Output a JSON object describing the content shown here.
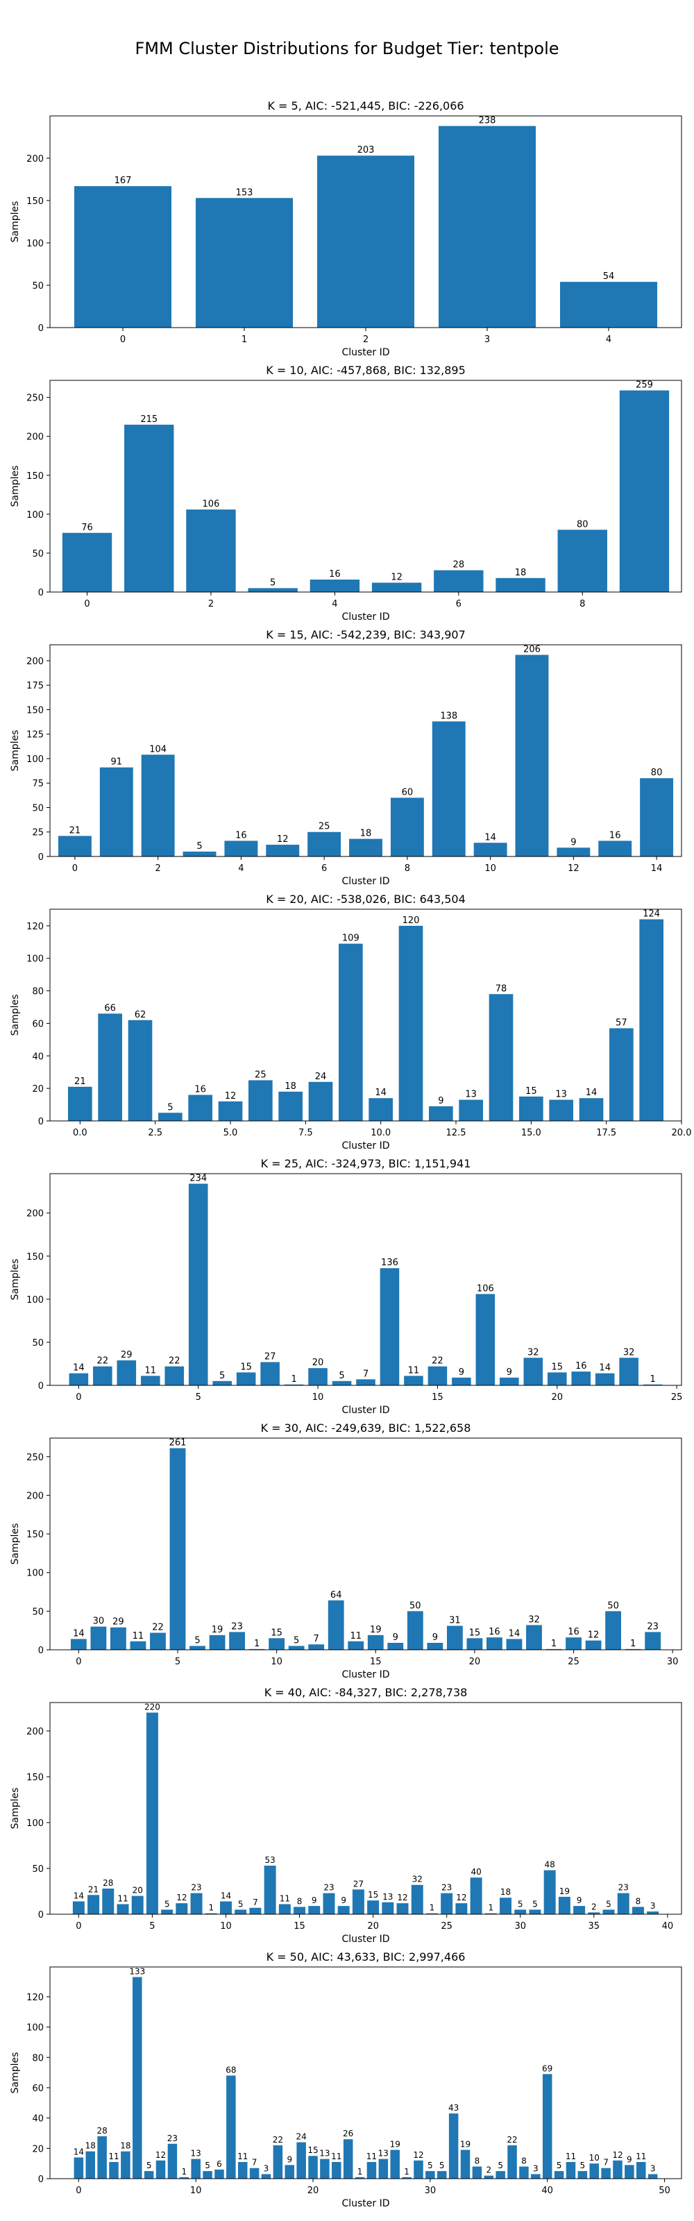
{
  "title": "FMM Cluster Distributions for Budget Tier: tentpole",
  "bar_color": "#1f77b4",
  "chart_data": [
    {
      "type": "bar",
      "title": "K = 5, AIC: -521,445, BIC: -226,066",
      "xlabel": "Cluster ID",
      "ylabel": "Samples",
      "x": [
        0,
        1,
        2,
        3,
        4
      ],
      "values": [
        167,
        153,
        203,
        238,
        54
      ],
      "xlim": [
        -0.6,
        4.6
      ],
      "ylim": [
        0,
        249.9
      ],
      "xticks": [
        0,
        1,
        2,
        3,
        4
      ],
      "xtick_labels": [
        "0",
        "1",
        "2",
        "3",
        "4"
      ],
      "yticks": [
        0,
        50,
        100,
        150,
        200
      ],
      "ytick_labels": [
        "0",
        "50",
        "100",
        "150",
        "200"
      ]
    },
    {
      "type": "bar",
      "title": "K = 10, AIC: -457,868, BIC: 132,895",
      "xlabel": "Cluster ID",
      "ylabel": "Samples",
      "x": [
        0,
        1,
        2,
        3,
        4,
        5,
        6,
        7,
        8,
        9
      ],
      "values": [
        76,
        215,
        106,
        5,
        16,
        12,
        28,
        18,
        80,
        259
      ],
      "xlim": [
        -0.6,
        9.6
      ],
      "ylim": [
        0,
        271.95
      ],
      "xticks": [
        0,
        2,
        4,
        6,
        8
      ],
      "xtick_labels": [
        "0",
        "2",
        "4",
        "6",
        "8"
      ],
      "yticks": [
        0,
        50,
        100,
        150,
        200,
        250
      ],
      "ytick_labels": [
        "0",
        "50",
        "100",
        "150",
        "200",
        "250"
      ]
    },
    {
      "type": "bar",
      "title": "K = 15, AIC: -542,239, BIC: 343,907",
      "xlabel": "Cluster ID",
      "ylabel": "Samples",
      "x": [
        0,
        1,
        2,
        3,
        4,
        5,
        6,
        7,
        8,
        9,
        10,
        11,
        12,
        13,
        14
      ],
      "values": [
        21,
        91,
        104,
        5,
        16,
        12,
        25,
        18,
        60,
        138,
        14,
        206,
        9,
        16,
        80
      ],
      "xlim": [
        -0.6,
        14.6
      ],
      "ylim": [
        0,
        216.3
      ],
      "xticks": [
        0,
        2,
        4,
        6,
        8,
        10,
        12,
        14
      ],
      "xtick_labels": [
        "0",
        "2",
        "4",
        "6",
        "8",
        "10",
        "12",
        "14"
      ],
      "yticks": [
        0,
        25,
        50,
        75,
        100,
        125,
        150,
        175,
        200
      ],
      "ytick_labels": [
        "0",
        "25",
        "50",
        "75",
        "100",
        "125",
        "150",
        "175",
        "200"
      ]
    },
    {
      "type": "bar",
      "title": "K = 20, AIC: -538,026, BIC: 643,504",
      "xlabel": "Cluster ID",
      "ylabel": "Samples",
      "x": [
        0,
        1,
        2,
        3,
        4,
        5,
        6,
        7,
        8,
        9,
        10,
        11,
        12,
        13,
        14,
        15,
        16,
        17,
        18,
        19
      ],
      "values": [
        21,
        66,
        62,
        5,
        16,
        12,
        25,
        18,
        24,
        109,
        14,
        120,
        9,
        13,
        78,
        15,
        13,
        14,
        57,
        124
      ],
      "xlim": [
        -1.0,
        20.0
      ],
      "ylim": [
        0,
        130.2
      ],
      "xticks": [
        0,
        2.5,
        5,
        7.5,
        10,
        12.5,
        15,
        17.5,
        20
      ],
      "xtick_labels": [
        "0.0",
        "2.5",
        "5.0",
        "7.5",
        "10.0",
        "12.5",
        "15.0",
        "17.5",
        "20.0"
      ],
      "yticks": [
        0,
        20,
        40,
        60,
        80,
        100,
        120
      ],
      "ytick_labels": [
        "0",
        "20",
        "40",
        "60",
        "80",
        "100",
        "120"
      ]
    },
    {
      "type": "bar",
      "title": "K = 25, AIC: -324,973, BIC: 1,151,941",
      "xlabel": "Cluster ID",
      "ylabel": "Samples",
      "x": [
        0,
        1,
        2,
        3,
        4,
        5,
        6,
        7,
        8,
        9,
        10,
        11,
        12,
        13,
        14,
        15,
        16,
        17,
        18,
        19,
        20,
        21,
        22,
        23,
        24
      ],
      "values": [
        14,
        22,
        29,
        11,
        22,
        234,
        5,
        15,
        27,
        1,
        20,
        5,
        7,
        136,
        11,
        22,
        9,
        106,
        9,
        32,
        15,
        16,
        14,
        32,
        1
      ],
      "xlim": [
        -1.2,
        25.2
      ],
      "ylim": [
        0,
        245.7
      ],
      "xticks": [
        0,
        5,
        10,
        15,
        20,
        25
      ],
      "xtick_labels": [
        "0",
        "5",
        "10",
        "15",
        "20",
        "25"
      ],
      "yticks": [
        0,
        50,
        100,
        150,
        200
      ],
      "ytick_labels": [
        "0",
        "50",
        "100",
        "150",
        "200"
      ]
    },
    {
      "type": "bar",
      "title": "K = 30, AIC: -249,639, BIC: 1,522,658",
      "xlabel": "Cluster ID",
      "ylabel": "Samples",
      "x": [
        0,
        1,
        2,
        3,
        4,
        5,
        6,
        7,
        8,
        9,
        10,
        11,
        12,
        13,
        14,
        15,
        16,
        17,
        18,
        19,
        20,
        21,
        22,
        23,
        24,
        25,
        26,
        27,
        28,
        29
      ],
      "values": [
        14,
        30,
        29,
        11,
        22,
        261,
        5,
        19,
        23,
        1,
        15,
        5,
        7,
        64,
        11,
        19,
        9,
        50,
        9,
        31,
        15,
        16,
        14,
        32,
        1,
        16,
        12,
        50,
        1,
        23
      ],
      "xlim": [
        -1.45,
        30.45
      ],
      "ylim": [
        0,
        274.05
      ],
      "xticks": [
        0,
        5,
        10,
        15,
        20,
        25,
        30
      ],
      "xtick_labels": [
        "0",
        "5",
        "10",
        "15",
        "20",
        "25",
        "30"
      ],
      "yticks": [
        0,
        50,
        100,
        150,
        200,
        250
      ],
      "ytick_labels": [
        "0",
        "50",
        "100",
        "150",
        "200",
        "250"
      ]
    },
    {
      "type": "bar",
      "title": "K = 40, AIC: -84,327, BIC: 2,278,738",
      "xlabel": "Cluster ID",
      "ylabel": "Samples",
      "x": [
        0,
        1,
        2,
        3,
        4,
        5,
        6,
        7,
        8,
        9,
        10,
        11,
        12,
        13,
        14,
        15,
        16,
        17,
        18,
        19,
        20,
        21,
        22,
        23,
        24,
        25,
        26,
        27,
        28,
        29,
        30,
        31,
        32,
        33,
        34,
        35,
        36,
        37,
        38,
        39
      ],
      "values": [
        14,
        21,
        28,
        11,
        20,
        220,
        5,
        12,
        23,
        1,
        14,
        5,
        7,
        53,
        11,
        8,
        9,
        23,
        9,
        27,
        15,
        13,
        12,
        32,
        1,
        23,
        12,
        40,
        1,
        18,
        5,
        5,
        48,
        19,
        9,
        2,
        5,
        23,
        8,
        3
      ],
      "xlim": [
        -1.95,
        40.95
      ],
      "ylim": [
        0,
        231.0
      ],
      "xticks": [
        0,
        5,
        10,
        15,
        20,
        25,
        30,
        35,
        40
      ],
      "xtick_labels": [
        "0",
        "5",
        "10",
        "15",
        "20",
        "25",
        "30",
        "35",
        "40"
      ],
      "yticks": [
        0,
        50,
        100,
        150,
        200
      ],
      "ytick_labels": [
        "0",
        "50",
        "100",
        "150",
        "200"
      ]
    },
    {
      "type": "bar",
      "title": "K = 50, AIC: 43,633, BIC: 2,997,466",
      "xlabel": "Cluster ID",
      "ylabel": "Samples",
      "x": [
        0,
        1,
        2,
        3,
        4,
        5,
        6,
        7,
        8,
        9,
        10,
        11,
        12,
        13,
        14,
        15,
        16,
        17,
        18,
        19,
        20,
        21,
        22,
        23,
        24,
        25,
        26,
        27,
        28,
        29,
        30,
        31,
        32,
        33,
        34,
        35,
        36,
        37,
        38,
        39,
        40,
        41,
        42,
        43,
        44,
        45,
        46,
        47,
        48,
        49
      ],
      "values": [
        14,
        18,
        28,
        11,
        18,
        133,
        5,
        12,
        23,
        1,
        13,
        5,
        6,
        68,
        11,
        7,
        3,
        22,
        9,
        24,
        15,
        13,
        11,
        26,
        1,
        11,
        13,
        19,
        1,
        12,
        5,
        5,
        43,
        19,
        8,
        2,
        5,
        22,
        8,
        3,
        69,
        5,
        11,
        5,
        10,
        7,
        12,
        9,
        11,
        3
      ],
      "xlim": [
        -2.45,
        51.45
      ],
      "ylim": [
        0,
        139.65
      ],
      "xticks": [
        0,
        10,
        20,
        30,
        40,
        50
      ],
      "xtick_labels": [
        "0",
        "10",
        "20",
        "30",
        "40",
        "50"
      ],
      "yticks": [
        0,
        20,
        40,
        60,
        80,
        100,
        120
      ],
      "ytick_labels": [
        "0",
        "20",
        "40",
        "60",
        "80",
        "100",
        "120"
      ]
    }
  ]
}
